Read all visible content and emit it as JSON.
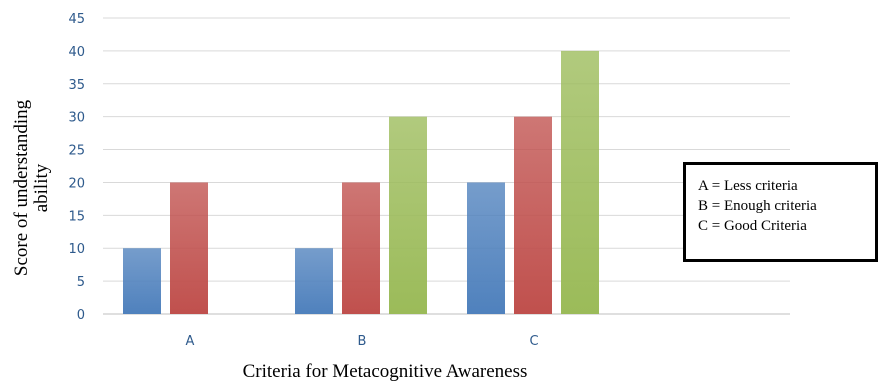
{
  "chart_data": {
    "type": "bar",
    "categories": [
      "A",
      "B",
      "C"
    ],
    "series": [
      {
        "values": [
          10,
          10,
          20
        ],
        "color": "#4f81bd"
      },
      {
        "values": [
          20,
          20,
          30
        ],
        "color": "#c0504d"
      },
      {
        "values": [
          0,
          30,
          40
        ],
        "color": "#9bbb59"
      }
    ],
    "xlabel": "Criteria for Metacognitive Awareness",
    "ylabel_lines": [
      "Score of understanding",
      "ability"
    ],
    "ylim": [
      0,
      45
    ],
    "ytick_step": 5,
    "grid": true
  },
  "legend": {
    "lines": [
      "A = Less criteria",
      "B = Enough criteria",
      "C = Good Criteria"
    ]
  }
}
